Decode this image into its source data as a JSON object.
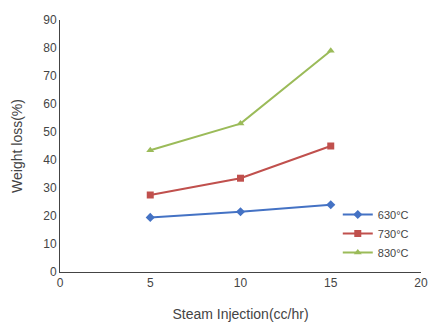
{
  "chart_data": {
    "type": "line",
    "x": [
      5,
      10,
      15
    ],
    "series": [
      {
        "name": "630°C",
        "values": [
          19.5,
          21.5,
          24.0
        ],
        "color": "#4472C4",
        "marker": "diamond"
      },
      {
        "name": "730°C",
        "values": [
          27.5,
          33.5,
          45.0
        ],
        "color": "#C0504D",
        "marker": "square"
      },
      {
        "name": "830°C",
        "values": [
          43.5,
          53.0,
          79.0
        ],
        "color": "#9BBB59",
        "marker": "triangle"
      }
    ],
    "xlabel": "Steam Injection(cc/hr)",
    "ylabel": "Weight loss(%)",
    "xlim": [
      0,
      20
    ],
    "ylim": [
      0,
      90
    ],
    "xticks": [
      0,
      5,
      10,
      15,
      20
    ],
    "yticks": [
      0,
      10,
      20,
      30,
      40,
      50,
      60,
      70,
      80,
      90
    ],
    "legend": "lower right",
    "grid": false
  }
}
